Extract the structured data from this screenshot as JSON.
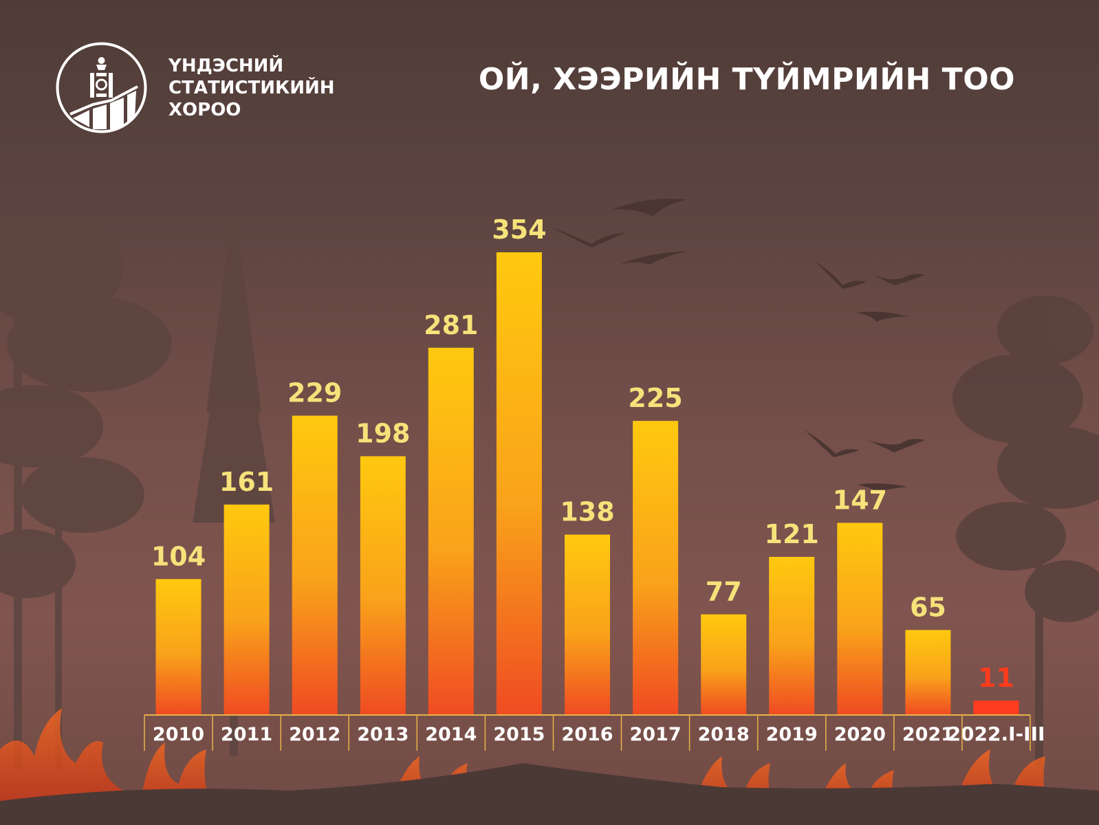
{
  "header": {
    "org_line1": "ҮНДЭСНИЙ",
    "org_line2": "СТАТИСТИКИЙН",
    "org_line3": "ХОРОО",
    "title": "ОЙ, ХЭЭРИЙН ТҮЙМРИЙН ТОО"
  },
  "colors": {
    "bar_top": "#ffc90f",
    "bar_bottom": "#ef4b22",
    "value_label": "#f6e27a",
    "highlight": "#ff3c1e",
    "axis": "#e8b44a"
  },
  "chart_data": {
    "type": "bar",
    "categories": [
      "2010",
      "2011",
      "2012",
      "2013",
      "2014",
      "2015",
      "2016",
      "2017",
      "2018",
      "2019",
      "2020",
      "2021",
      "2022.I-III"
    ],
    "values": [
      104,
      161,
      229,
      198,
      281,
      354,
      138,
      225,
      77,
      121,
      147,
      65,
      11
    ],
    "title": "ОЙ, ХЭЭРИЙН ТҮЙМРИЙН ТОО",
    "xlabel": "",
    "ylabel": "",
    "ylim": [
      0,
      354
    ],
    "grid": false,
    "legend": "none",
    "highlighted_category": "2022.I-III"
  }
}
